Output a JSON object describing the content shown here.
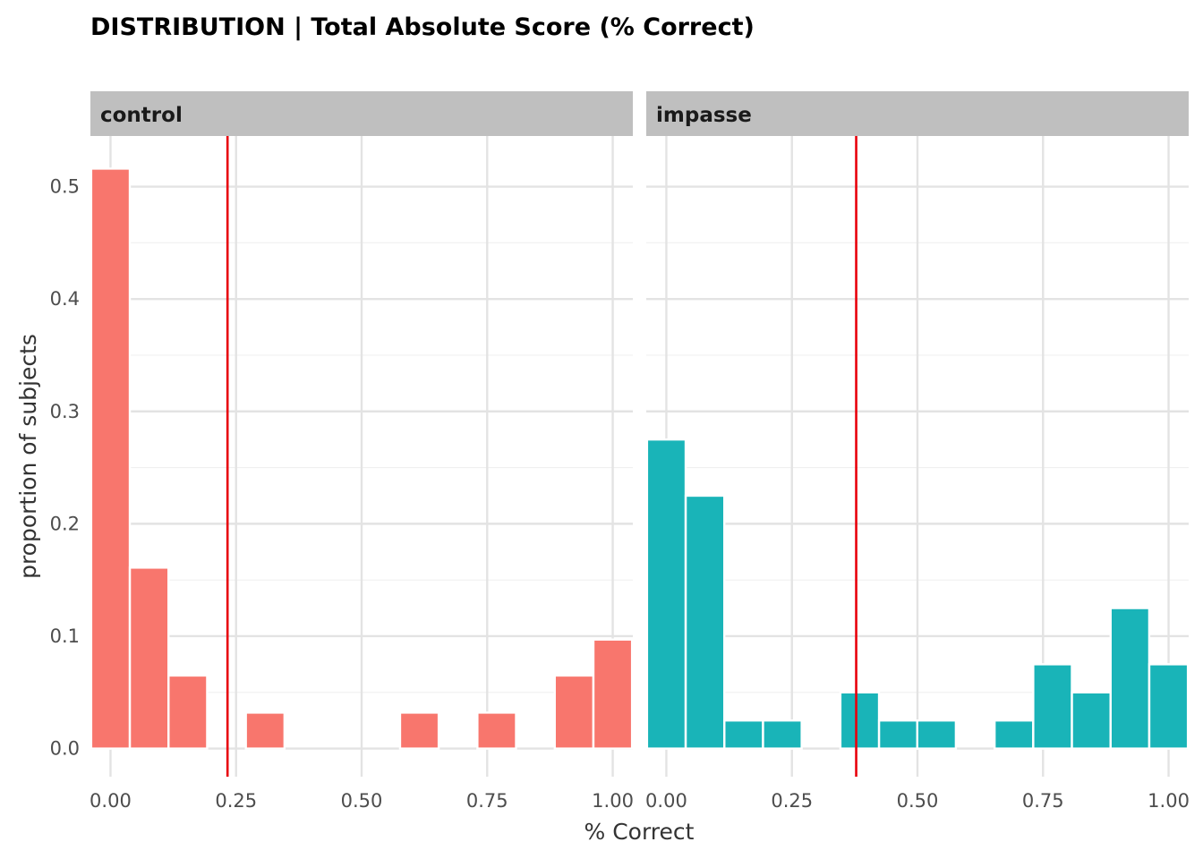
{
  "chart_data": {
    "type": "bar",
    "title": "DISTRIBUTION | Total Absolute Score (% Correct)",
    "xlabel": "% Correct",
    "ylabel": "proportion of subjects",
    "xlim": [
      -0.04,
      1.04
    ],
    "ylim": [
      -0.025,
      0.545
    ],
    "x_ticks": [
      "0.00",
      "0.25",
      "0.50",
      "0.75",
      "1.00"
    ],
    "y_ticks": [
      "0.0",
      "0.1",
      "0.2",
      "0.3",
      "0.4",
      "0.5"
    ],
    "bin_width": 0.0769,
    "grid": true,
    "facets": [
      {
        "name": "control",
        "color": "#F8766D",
        "mean_line": 0.233,
        "mean_line_color": "#E8000B",
        "bins": [
          {
            "x": 0.0,
            "y": 0.516
          },
          {
            "x": 0.077,
            "y": 0.161
          },
          {
            "x": 0.154,
            "y": 0.065
          },
          {
            "x": 0.308,
            "y": 0.032
          },
          {
            "x": 0.615,
            "y": 0.032
          },
          {
            "x": 0.769,
            "y": 0.032
          },
          {
            "x": 0.923,
            "y": 0.065
          },
          {
            "x": 1.0,
            "y": 0.097
          }
        ]
      },
      {
        "name": "impasse",
        "color": "#19B4B8",
        "mean_line": 0.378,
        "mean_line_color": "#E8000B",
        "bins": [
          {
            "x": 0.0,
            "y": 0.275
          },
          {
            "x": 0.077,
            "y": 0.225
          },
          {
            "x": 0.154,
            "y": 0.025
          },
          {
            "x": 0.231,
            "y": 0.025
          },
          {
            "x": 0.385,
            "y": 0.05
          },
          {
            "x": 0.462,
            "y": 0.025
          },
          {
            "x": 0.538,
            "y": 0.025
          },
          {
            "x": 0.692,
            "y": 0.025
          },
          {
            "x": 0.769,
            "y": 0.075
          },
          {
            "x": 0.846,
            "y": 0.05
          },
          {
            "x": 0.923,
            "y": 0.125
          },
          {
            "x": 1.0,
            "y": 0.075
          }
        ]
      }
    ]
  }
}
